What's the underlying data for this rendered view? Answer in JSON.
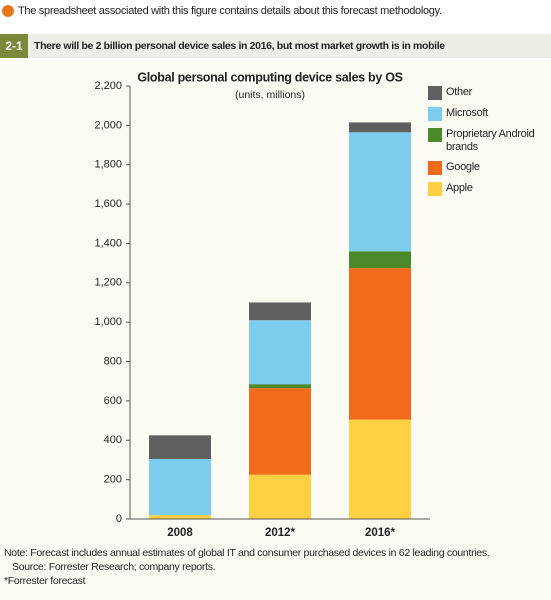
{
  "header_note": "The spreadsheet associated with this figure contains details about this forecast methodology.",
  "figure_number": "2-1",
  "figure_title": "There will be 2 billion personal device sales in 2016, but most market growth is in mobile",
  "chart_data": {
    "type": "stacked_bar",
    "title": "Global personal computing device sales by OS",
    "subtitle": "(units, millions)",
    "categories": [
      "2008",
      "2012*",
      "2016*"
    ],
    "series": [
      {
        "name": "Apple",
        "color": "#fdd043",
        "values": [
          20,
          225,
          505
        ]
      },
      {
        "name": "Google",
        "color": "#f26b1d",
        "values": [
          0,
          440,
          770
        ]
      },
      {
        "name": "Proprietary Android brands",
        "color": "#4a8a2a",
        "values": [
          0,
          20,
          85
        ]
      },
      {
        "name": "Microsoft",
        "color": "#7dcdee",
        "values": [
          285,
          325,
          605
        ]
      },
      {
        "name": "Other",
        "color": "#5f5f5f",
        "values": [
          120,
          90,
          50
        ]
      }
    ],
    "ylim": [
      0,
      2200
    ],
    "yticks": [
      0,
      200,
      400,
      600,
      800,
      {
        "value": 1000,
        "label": "1,000"
      },
      {
        "value": 1200,
        "label": "1,200"
      },
      {
        "value": 1400,
        "label": "1,400"
      },
      {
        "value": 1600,
        "label": "1,600"
      },
      {
        "value": 1800,
        "label": "1,800"
      },
      {
        "value": 2000,
        "label": "2,000"
      },
      {
        "value": 2200,
        "label": "2,200"
      }
    ],
    "grid": false
  },
  "notes": [
    "Note: Forecast includes annual estimates of global IT and consumer purchased devices in 62 leading countries.",
    "Source: Forrester Research; company reports.",
    "*Forrester forecast"
  ]
}
